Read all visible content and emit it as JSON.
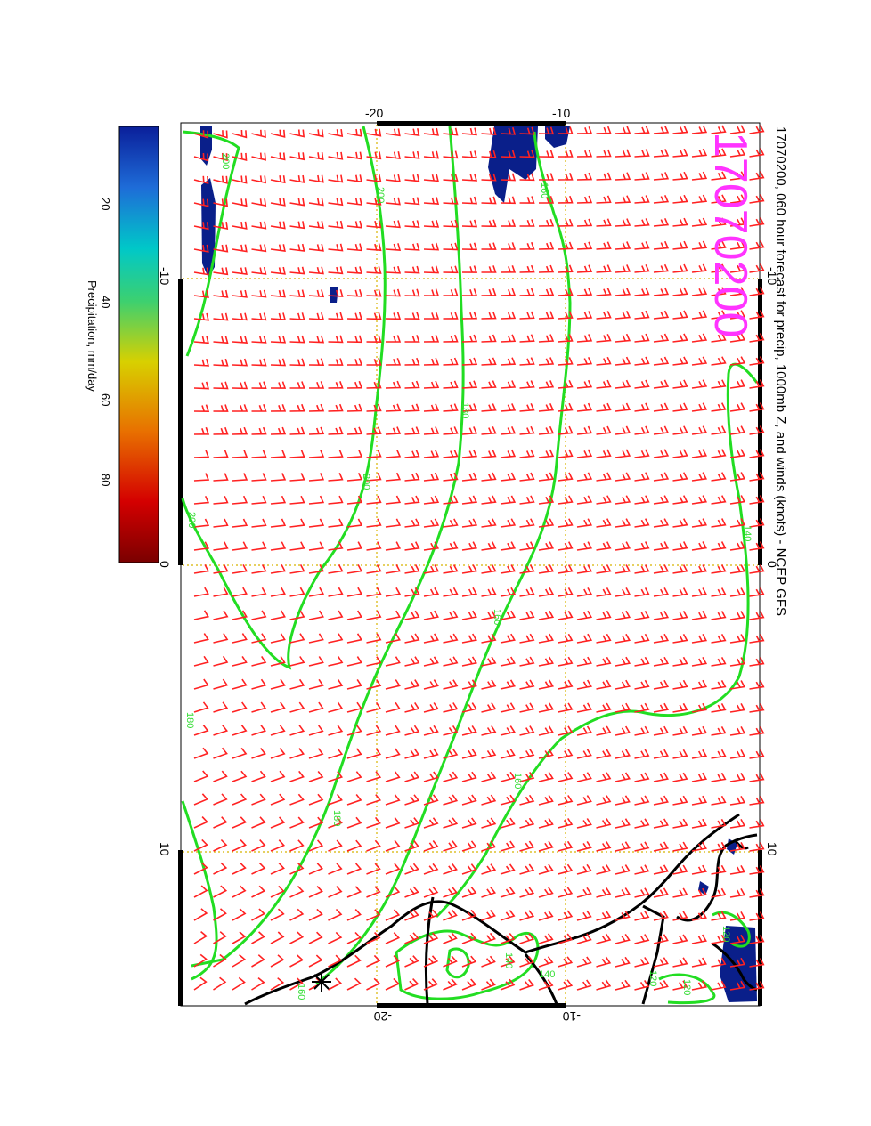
{
  "title": "17070200, 060 hour forecast for precip, 1000mb Z, and winds (knots) - NCEP GFS",
  "stamp": "17070200",
  "colorbar": {
    "label": "Precipitation, mm/day",
    "ticks": [
      "20",
      "40",
      "60",
      "80"
    ],
    "colors": [
      "#7a0000",
      "#d40000",
      "#e87000",
      "#d8d000",
      "#3cd070",
      "#00c8c8",
      "#1e6cd8",
      "#0a1f9a"
    ]
  },
  "map": {
    "top_ticks": [
      "-20",
      "-10"
    ],
    "bottom_ticks": [
      "-20",
      "-10"
    ],
    "left_ticks": [
      "-10",
      "0",
      "10"
    ],
    "right_ticks": [
      "-10",
      "0",
      "10"
    ],
    "contour_labels": [
      "200",
      "200",
      "200",
      "200",
      "180",
      "180",
      "180",
      "160",
      "160",
      "160",
      "140",
      "140",
      "140",
      "120",
      "120",
      "120",
      "160"
    ],
    "colors": {
      "grid": "#d8b400",
      "contour": "#22dd22",
      "barb": "#ff2222",
      "coast": "#000000",
      "precip": "#0a1f8a",
      "stamp": "#ff33ff"
    }
  }
}
